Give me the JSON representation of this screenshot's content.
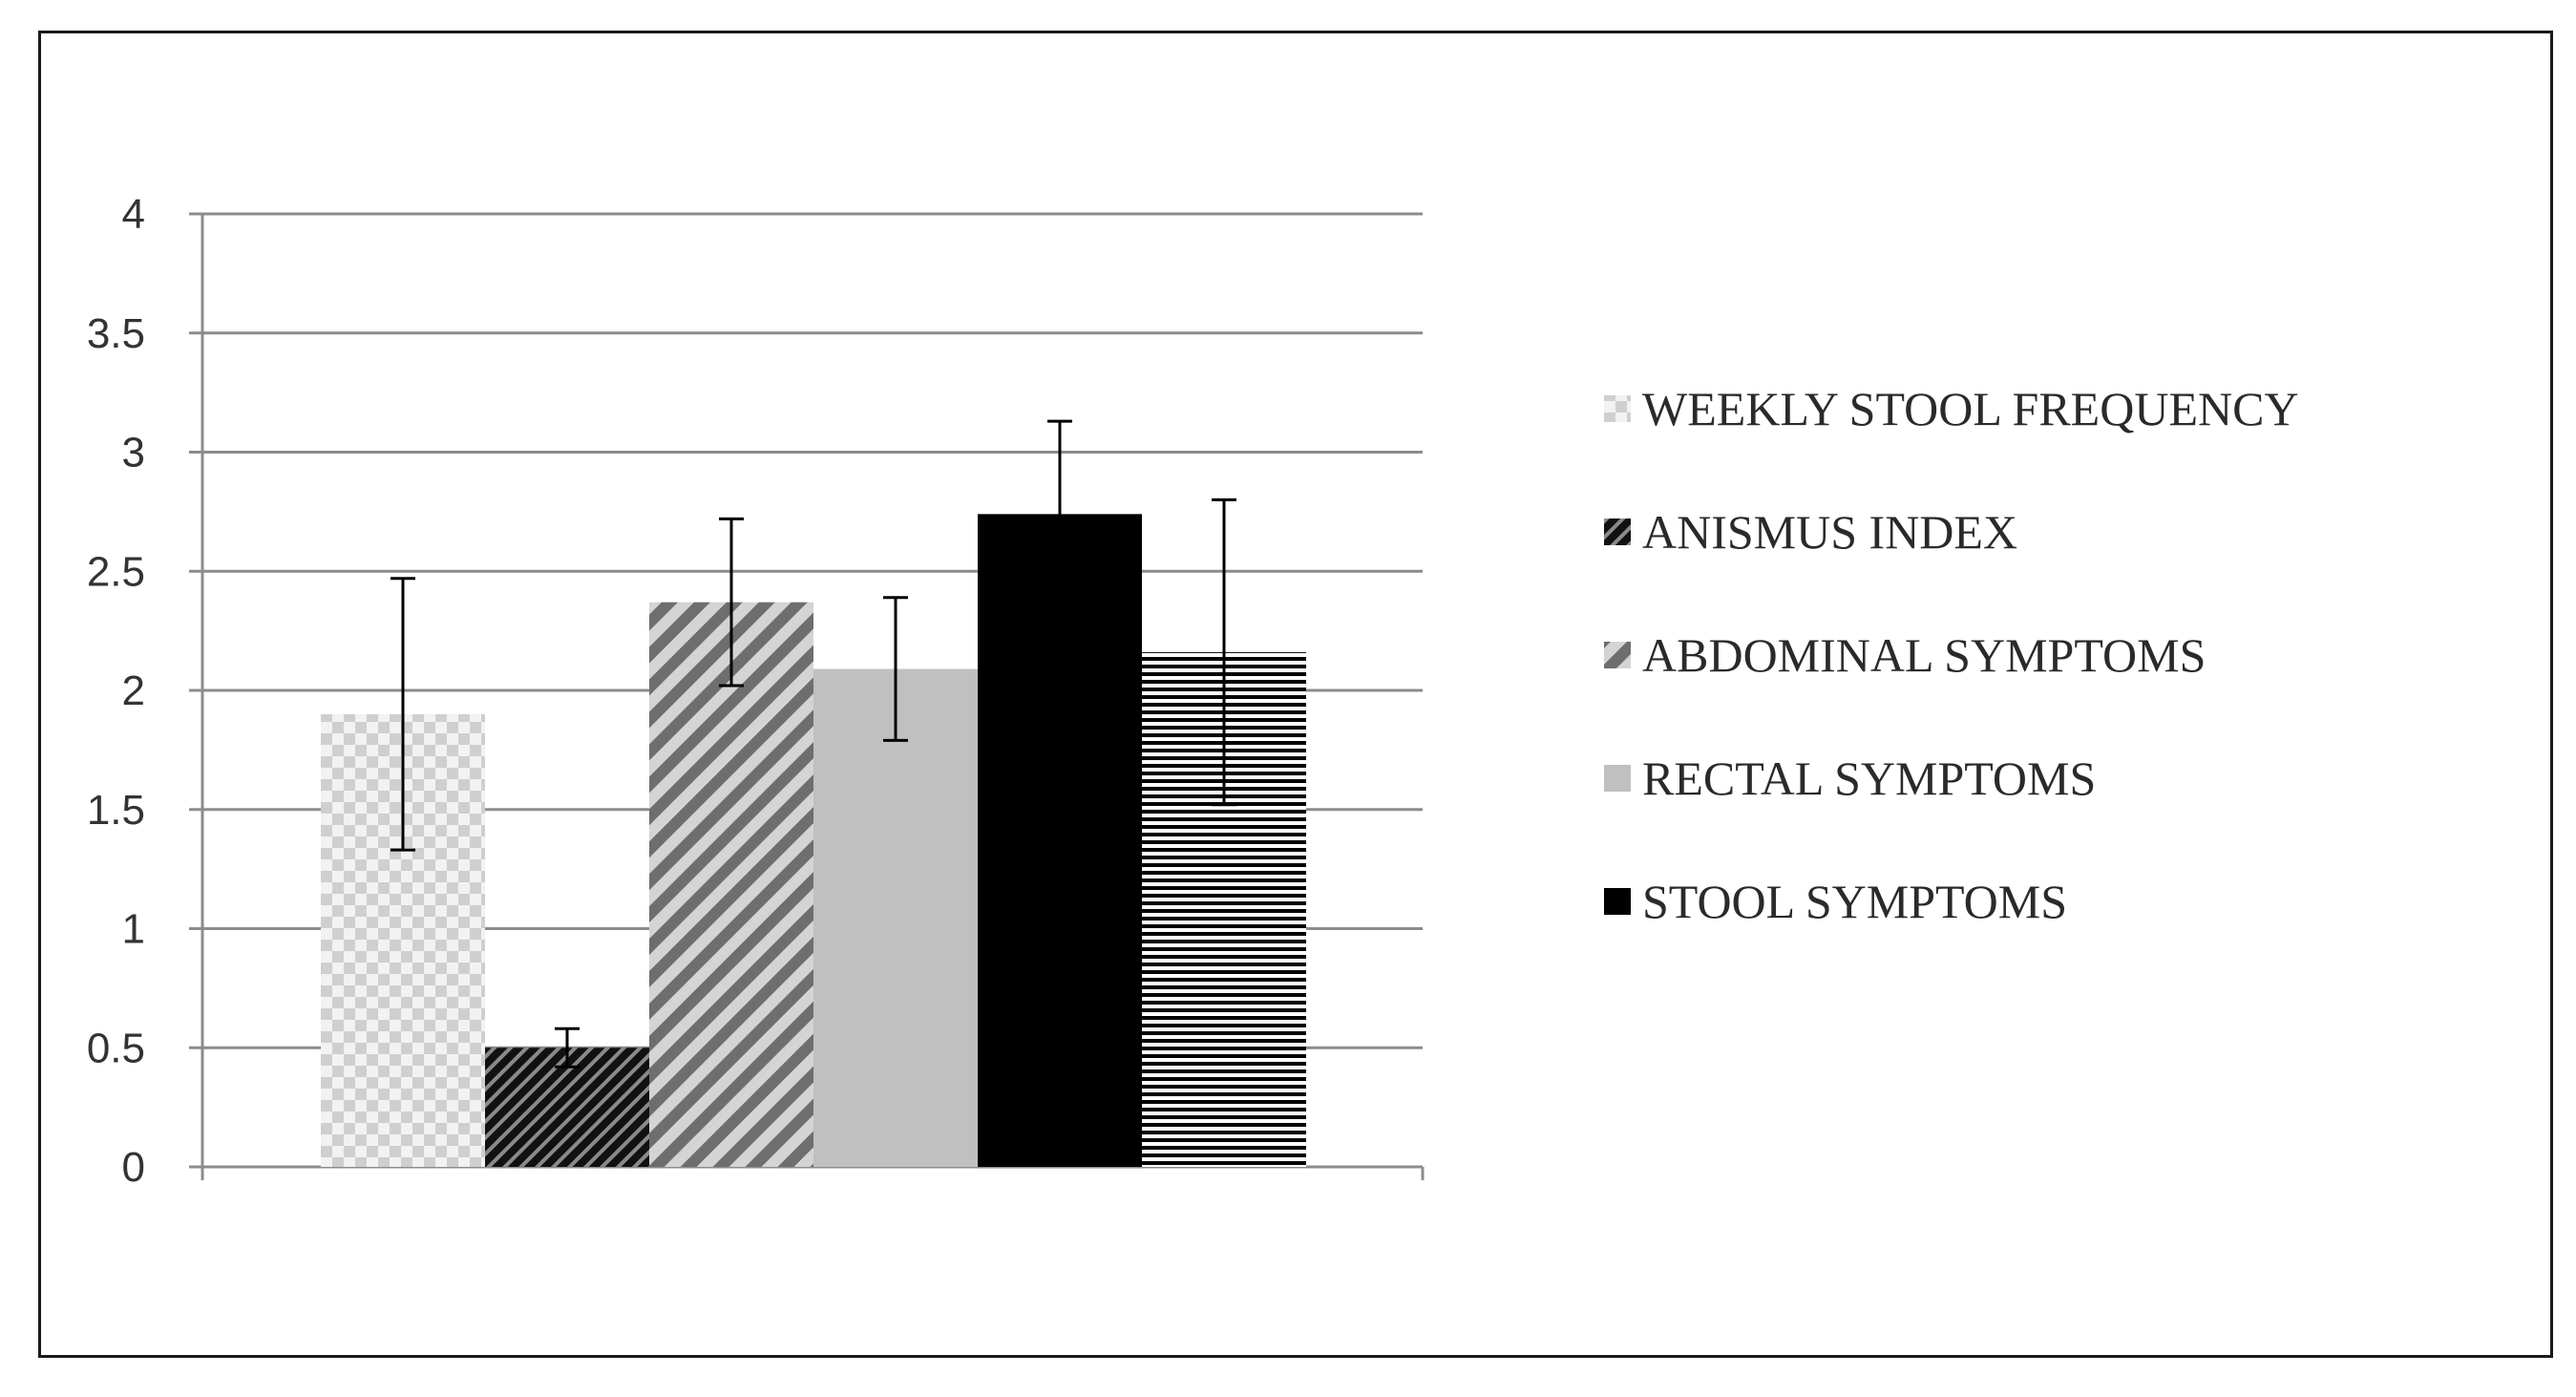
{
  "chart_data": {
    "type": "bar",
    "categories": [
      ""
    ],
    "ylim": [
      0,
      4
    ],
    "yticks": [
      "0",
      "0.5",
      "1",
      "1.5",
      "2",
      "2.5",
      "3",
      "3.5",
      "4"
    ],
    "grid": true,
    "legend_position": "right",
    "series": [
      {
        "name": "WEEKLY STOOL FREQUENCY",
        "values": [
          1.9
        ],
        "error": [
          0.57
        ],
        "pattern": "checker",
        "color": "#d9d9d9"
      },
      {
        "name": "ANISMUS INDEX",
        "values": [
          0.5
        ],
        "error": [
          0.08
        ],
        "pattern": "dark-diagonal-dense",
        "color": "#1a1a1a"
      },
      {
        "name": "ABDOMINAL SYMPTOMS",
        "values": [
          2.37
        ],
        "error": [
          0.35
        ],
        "pattern": "diagonal-stripes",
        "color": "#7a7a7a"
      },
      {
        "name": "RECTAL SYMPTOMS",
        "values": [
          2.09
        ],
        "error": [
          0.3
        ],
        "pattern": "solid",
        "color": "#c0c0c0"
      },
      {
        "name": "STOOL SYMPTOMS",
        "values": [
          2.74
        ],
        "error": [
          0.39
        ],
        "pattern": "solid",
        "color": "#000000"
      },
      {
        "name": "",
        "values": [
          2.16
        ],
        "error": [
          0.64
        ],
        "pattern": "horizontal-lines",
        "color": "#000000"
      }
    ],
    "legend": [
      "WEEKLY STOOL FREQUENCY",
      "ANISMUS INDEX",
      "ABDOMINAL SYMPTOMS",
      "RECTAL SYMPTOMS",
      "STOOL SYMPTOMS"
    ]
  }
}
